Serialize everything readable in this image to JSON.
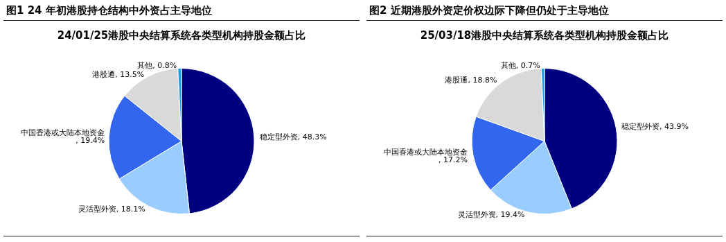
{
  "chart_data": [
    {
      "type": "pie",
      "title": "图1  24 年初港股持仓结构中外资占主导地位",
      "subtitle": "24/01/25港股中央结算系统各类型机构持股金额占比",
      "categories": [
        "稳定型外资",
        "灵活型外资",
        "中国香港或大陆本地资金",
        "港股通",
        "其他"
      ],
      "values": [
        48.3,
        18.1,
        19.4,
        13.5,
        0.8
      ],
      "colors": [
        "#000080",
        "#99ccff",
        "#3366ee",
        "#d9d9d9",
        "#1a9fe0"
      ],
      "value_labels": [
        ", 48.3%",
        ", 18.1%",
        ", 19.4%",
        ", 13.5%",
        ", 0.8%"
      ]
    },
    {
      "type": "pie",
      "title": "图2  近期港股外资定价权边际下降但仍处于主导地位",
      "subtitle": "25/03/18港股中央结算系统各类型机构持股金额占比",
      "categories": [
        "稳定型外资",
        "灵活型外资",
        "中国香港或大陆本地资金",
        "港股通",
        "其他"
      ],
      "values": [
        43.9,
        19.4,
        17.2,
        18.8,
        0.7
      ],
      "colors": [
        "#000080",
        "#99ccff",
        "#3366ee",
        "#d9d9d9",
        "#1a9fe0"
      ],
      "value_labels": [
        ", 43.9%",
        ", 19.4%",
        ", 17.2%",
        ", 18.8%",
        ", 0.7%"
      ]
    }
  ]
}
